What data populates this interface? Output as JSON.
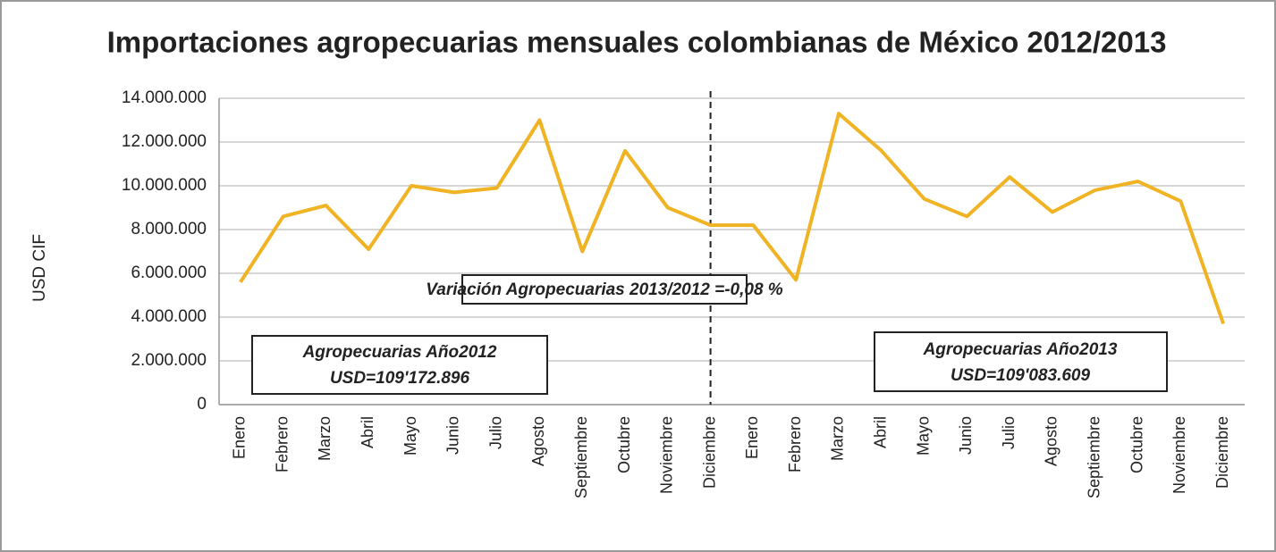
{
  "chart_data": {
    "type": "line",
    "title": "Importaciones agropecuarias mensuales colombianas de México 2012/2013",
    "y_label": "USD CIF",
    "categories": [
      "Enero",
      "Febrero",
      "Marzo",
      "Abril",
      "Mayo",
      "Junio",
      "Julio",
      "Agosto",
      "Septiembre",
      "Octubre",
      "Noviembre",
      "Diciembre",
      "Enero",
      "Febrero",
      "Marzo",
      "Abril",
      "Mayo",
      "Junio",
      "Julio",
      "Agosto",
      "Septiembre",
      "Octubre",
      "Noviembre",
      "Diciembre"
    ],
    "series": [
      {
        "name": "Importaciones",
        "color": "#f0b323",
        "values": [
          5600000,
          8600000,
          9100000,
          7100000,
          10000000,
          9700000,
          9900000,
          13000000,
          7000000,
          11600000,
          9000000,
          8200000,
          8200000,
          5700000,
          13300000,
          11600000,
          9400000,
          8600000,
          10400000,
          8800000,
          9800000,
          10200000,
          9300000,
          3700000
        ]
      }
    ],
    "ylim": [
      0,
      14000000
    ],
    "yticks": [
      0,
      {
        "value": 2000000,
        "label": "2.000.000"
      },
      {
        "value": 4000000,
        "label": "4.000.000"
      },
      {
        "value": 6000000,
        "label": "6.000.000"
      },
      {
        "value": 8000000,
        "label": "8.000.000"
      },
      {
        "value": 10000000,
        "label": "10.000.000"
      },
      {
        "value": 12000000,
        "label": "12.000.000"
      },
      {
        "value": 14000000,
        "label": "14.000.000"
      }
    ],
    "grid": true,
    "annotations": [
      "Variación Agropecuarias 2013/2012 =-0,08 %",
      "Agropecuarias Año2012",
      "USD=109'172.896",
      "Agropecuarias Año2013",
      "USD=109'083.609"
    ]
  }
}
